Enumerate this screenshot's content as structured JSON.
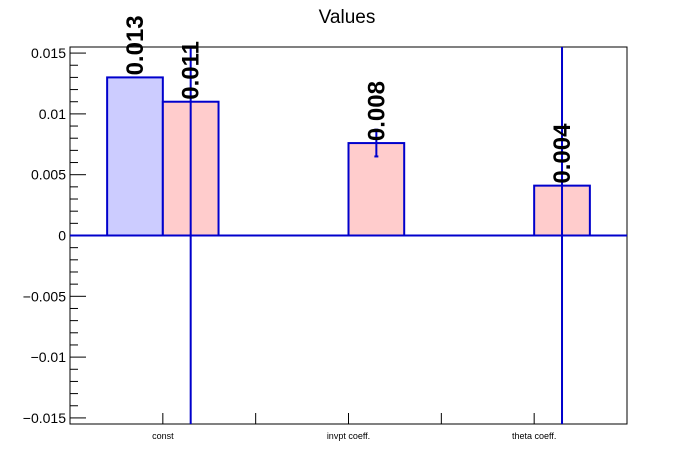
{
  "chart_data": {
    "type": "bar",
    "title": "Values",
    "categories": [
      "const",
      "invpt coeff.",
      "theta coeff."
    ],
    "ylim": [
      -0.0155,
      0.0155
    ],
    "yticks": [
      "−0.015",
      "−0.01",
      "−0.005",
      "0",
      "0.005",
      "0.01",
      "0.015"
    ],
    "ytick_values": [
      -0.015,
      -0.01,
      -0.005,
      0,
      0.005,
      0.01,
      0.015
    ],
    "grid": false,
    "legend": "none",
    "series": [
      {
        "color_fill": "#ccccff",
        "color_line": "#0000cc",
        "values": [
          0.013,
          null,
          null
        ],
        "labels": [
          "0.013",
          "",
          ""
        ],
        "errors": [
          0,
          null,
          null
        ]
      },
      {
        "color_fill": "#ffcccc",
        "color_line": "#0000cc",
        "values": [
          0.011,
          0.0076,
          0.0041
        ],
        "labels": [
          "0.011",
          "0.008",
          "0.004"
        ],
        "errors": [
          0.05,
          0.0011,
          0.05
        ]
      }
    ]
  }
}
